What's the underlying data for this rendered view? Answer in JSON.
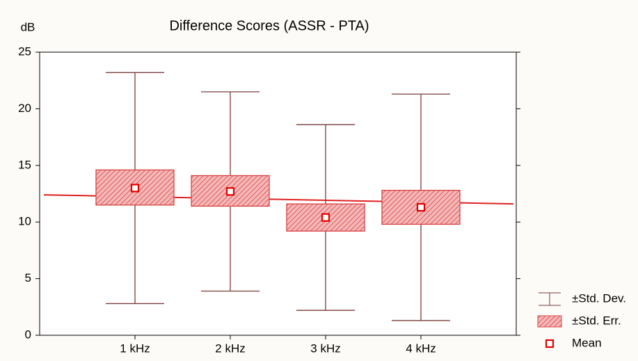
{
  "chart_data": {
    "type": "mean-box",
    "title": "Difference Scores (ASSR - PTA)",
    "y_label": "dB",
    "categories": [
      "1 kHz",
      "2 kHz",
      "3 kHz",
      "4 kHz"
    ],
    "mean": [
      13.0,
      12.7,
      10.4,
      11.3
    ],
    "se_low": [
      11.5,
      11.4,
      9.2,
      9.8
    ],
    "se_high": [
      14.6,
      14.1,
      11.6,
      12.8
    ],
    "sd_low": [
      2.8,
      3.9,
      2.2,
      1.3
    ],
    "sd_high": [
      23.2,
      21.5,
      18.6,
      21.3
    ],
    "trend_line": {
      "values": [
        12.4,
        11.6
      ],
      "color": "#e02020"
    },
    "ylim": [
      0,
      25
    ],
    "yticks": [
      0,
      5,
      10,
      15,
      20,
      25
    ],
    "legend": [
      "±Std. Dev.",
      "±Std. Err.",
      "Mean"
    ],
    "colors": {
      "whisker": "#7a3a3a",
      "box": "#d94040",
      "mean": "#e00000"
    }
  }
}
